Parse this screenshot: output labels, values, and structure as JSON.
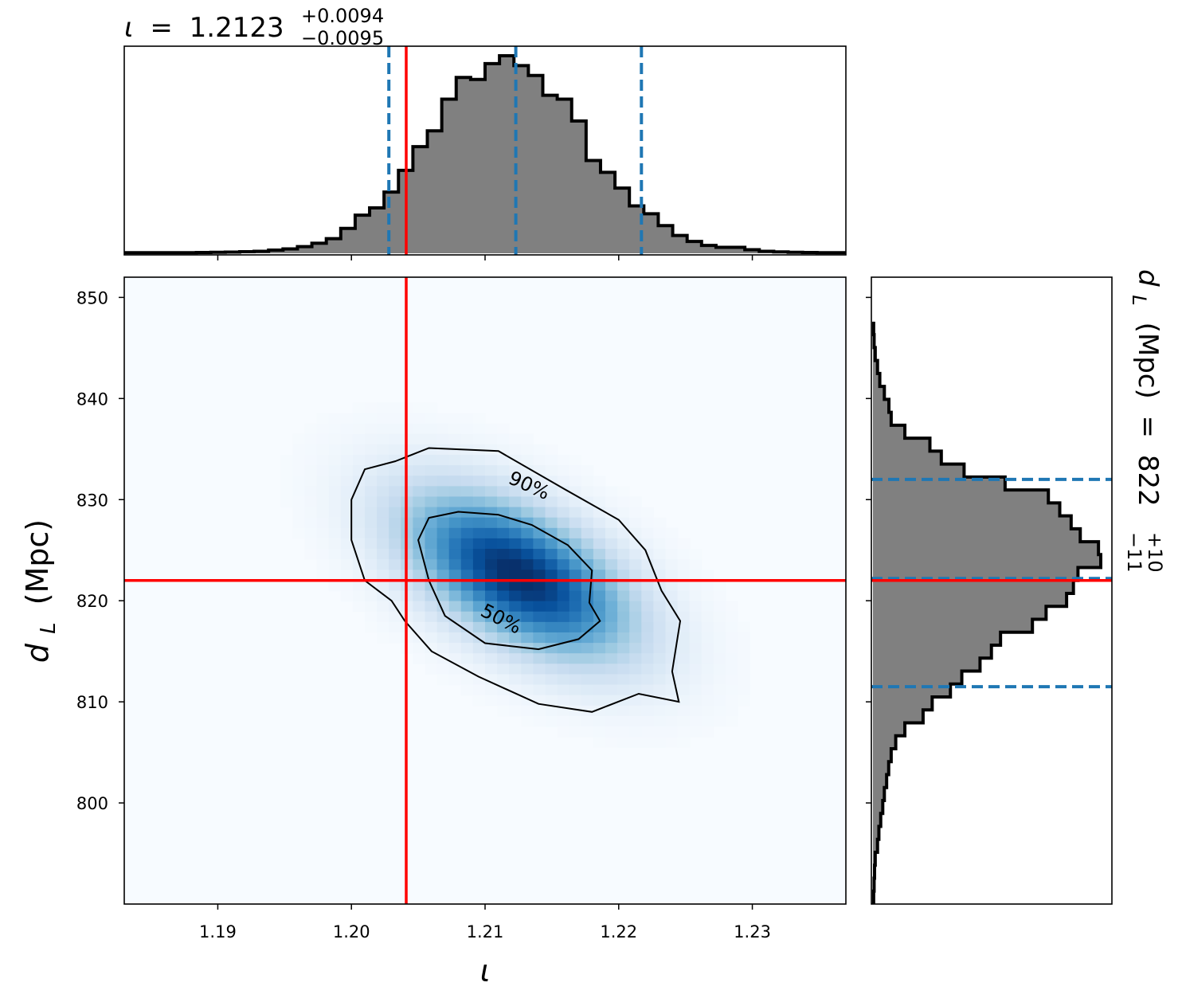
{
  "chart_data": {
    "type": "corner-plot",
    "panels": {
      "iota_hist": {
        "type": "histogram",
        "title_symbol": "ι",
        "title_equals": "=",
        "title_value": "1.2123",
        "title_upper": "+0.0094",
        "title_lower": "−0.0095",
        "xlim": [
          1.183,
          1.237
        ],
        "bin_edges_start": 1.183,
        "bin_width": 0.00108,
        "counts": [
          0.003,
          0.003,
          0.003,
          0.003,
          0.003,
          0.004,
          0.005,
          0.006,
          0.008,
          0.01,
          0.016,
          0.022,
          0.034,
          0.051,
          0.074,
          0.126,
          0.193,
          0.23,
          0.31,
          0.42,
          0.54,
          0.62,
          0.78,
          0.89,
          0.88,
          0.96,
          1.0,
          0.95,
          0.9,
          0.8,
          0.78,
          0.67,
          0.47,
          0.41,
          0.33,
          0.24,
          0.2,
          0.14,
          0.09,
          0.06,
          0.04,
          0.03,
          0.03,
          0.018,
          0.01,
          0.007,
          0.005,
          0.004,
          0.003,
          0.003
        ],
        "quantiles": [
          1.2028,
          1.2123,
          1.2217
        ],
        "truth": 1.2041
      },
      "joint": {
        "type": "2d-density",
        "xlabel": "ι",
        "ylabel_symbol": "d",
        "ylabel_sub": "L",
        "ylabel_units": "(Mpc)",
        "xlim": [
          1.183,
          1.237
        ],
        "ylim": [
          790,
          852
        ],
        "xticks": [
          {
            "value": 1.19,
            "label": "1.19"
          },
          {
            "value": 1.2,
            "label": "1.20"
          },
          {
            "value": 1.21,
            "label": "1.21"
          },
          {
            "value": 1.22,
            "label": "1.22"
          },
          {
            "value": 1.23,
            "label": "1.23"
          }
        ],
        "yticks": [
          {
            "value": 800,
            "label": "800"
          },
          {
            "value": 810,
            "label": "810"
          },
          {
            "value": 820,
            "label": "820"
          },
          {
            "value": 830,
            "label": "830"
          },
          {
            "value": 840,
            "label": "840"
          },
          {
            "value": 850,
            "label": "850"
          }
        ],
        "density_peak": [
          1.2125,
          822.5
        ],
        "density_sigma": [
          0.0058,
          5.6
        ],
        "density_correlation": -0.55,
        "contours": [
          {
            "label": "50%",
            "points": [
              [
                1.2058,
                828.2
              ],
              [
                1.208,
                828.8
              ],
              [
                1.211,
                828.5
              ],
              [
                1.2135,
                827.5
              ],
              [
                1.2162,
                825.5
              ],
              [
                1.218,
                823.0
              ],
              [
                1.2178,
                819.8
              ],
              [
                1.2186,
                818.0
              ],
              [
                1.217,
                816.2
              ],
              [
                1.214,
                815.2
              ],
              [
                1.21,
                815.8
              ],
              [
                1.207,
                818.5
              ],
              [
                1.2058,
                822.0
              ],
              [
                1.205,
                826.0
              ],
              [
                1.2058,
                828.2
              ]
            ]
          },
          {
            "label": "90%",
            "points": [
              [
                1.2033,
                833.8
              ],
              [
                1.2058,
                835.1
              ],
              [
                1.211,
                834.8
              ],
              [
                1.216,
                831.0
              ],
              [
                1.22,
                828.0
              ],
              [
                1.222,
                825.0
              ],
              [
                1.2232,
                821.0
              ],
              [
                1.2246,
                818.0
              ],
              [
                1.224,
                813.0
              ],
              [
                1.2245,
                810.0
              ],
              [
                1.2215,
                810.8
              ],
              [
                1.218,
                809.0
              ],
              [
                1.214,
                809.8
              ],
              [
                1.2095,
                812.5
              ],
              [
                1.206,
                815.0
              ],
              [
                1.204,
                818.0
              ],
              [
                1.203,
                820.0
              ],
              [
                1.201,
                822.0
              ],
              [
                1.2,
                826.0
              ],
              [
                1.2,
                830.0
              ],
              [
                1.201,
                833.0
              ],
              [
                1.2033,
                833.8
              ]
            ]
          }
        ],
        "truth": [
          1.2041,
          822.0
        ]
      },
      "dL_hist": {
        "type": "histogram",
        "orientation": "horizontal",
        "label_symbol": "d",
        "label_sub": "L",
        "label_units": "(Mpc)",
        "label_equals": "=",
        "label_value": "822",
        "label_upper": "+10",
        "label_lower": "−11",
        "ylim": [
          790,
          852
        ],
        "bin_edges_start": 790,
        "bin_width": 1.28,
        "counts": [
          0.003,
          0.005,
          0.007,
          0.01,
          0.02,
          0.026,
          0.034,
          0.043,
          0.05,
          0.06,
          0.069,
          0.08,
          0.1,
          0.14,
          0.22,
          0.26,
          0.34,
          0.39,
          0.47,
          0.52,
          0.56,
          0.7,
          0.76,
          0.85,
          0.88,
          0.9,
          1.0,
          0.99,
          0.91,
          0.87,
          0.82,
          0.77,
          0.58,
          0.4,
          0.3,
          0.25,
          0.14,
          0.08,
          0.07,
          0.05,
          0.03,
          0.02,
          0.01,
          0.005,
          0.003
        ],
        "quantiles": [
          811.5,
          822.2,
          832.0
        ],
        "truth": 822.0
      }
    }
  }
}
